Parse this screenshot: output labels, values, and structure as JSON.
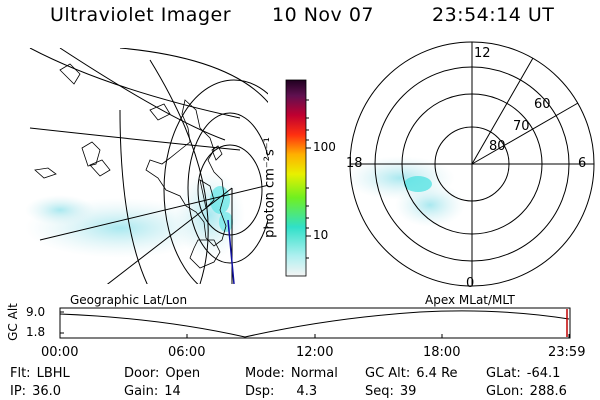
{
  "header": {
    "title": "Ultraviolet Imager",
    "date": "10 Nov 07",
    "time": "23:54:14 UT"
  },
  "colorbar": {
    "label": "photon cm⁻²s⁻¹",
    "ticks": [
      "100",
      "10"
    ]
  },
  "polar": {
    "mlt_labels": {
      "top": "12",
      "left": "18",
      "right": "6",
      "bottom": "0"
    },
    "lat_labels": [
      "60",
      "70",
      "80"
    ]
  },
  "altitude_panel": {
    "ylabel": "GC Alt",
    "left_caption": "Geographic Lat/Lon",
    "right_caption": "Apex MLat/MLT",
    "y_ticks": [
      "9.0",
      "1.8"
    ],
    "x_ticks": [
      "00:00",
      "06:00",
      "12:00",
      "18:00",
      "23:59"
    ]
  },
  "info": {
    "row1": {
      "flt_label": "Flt:",
      "flt_value": "LBHL",
      "door_label": "Door:",
      "door_value": "Open",
      "mode_label": "Mode:",
      "mode_value": "Normal",
      "gcalt_label": "GC Alt:",
      "gcalt_value": "6.4 Re",
      "glat_label": "GLat:",
      "glat_value": "-64.1"
    },
    "row2": {
      "ip_label": "IP:",
      "ip_value": "36.0",
      "gain_label": "Gain:",
      "gain_value": "14",
      "dsp_label": "Dsp:",
      "dsp_value": "4.3",
      "seq_label": "Seq:",
      "seq_value": "39",
      "glon_label": "GLon:",
      "glon_value": "288.6"
    }
  },
  "colors": {
    "aurora": "#3fe0e0",
    "speckle": "#bfe6ee"
  }
}
